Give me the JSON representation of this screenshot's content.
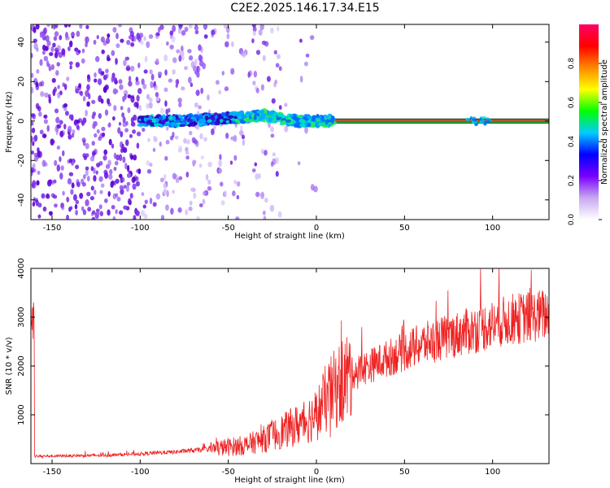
{
  "title": "C2E2.2025.146.17.34.E15",
  "colors": {
    "signal": "#ee2222",
    "line": "#00aa44",
    "noise": "#6a0dd6",
    "axis": "#000000"
  },
  "chart_data": [
    {
      "type": "heatmap",
      "title": "C2E2.2025.146.17.34.E15",
      "xlabel": "Height of straight line (km)",
      "ylabel": "Frequency (Hz)",
      "xlim": [
        -162,
        132
      ],
      "ylim": [
        -50,
        49
      ],
      "xticks": [
        -150,
        -100,
        -50,
        0,
        50,
        100
      ],
      "yticks": [
        -40,
        -20,
        0,
        20,
        40
      ],
      "colorbar": {
        "label": "Normalized spectral amplitude",
        "range": [
          0.0,
          1.0
        ],
        "ticks": [
          "0.0",
          "0.2",
          "0.4",
          "0.6",
          "0.8"
        ],
        "stops": [
          "#ffffff",
          "#c8a8f0",
          "#7a00ff",
          "#0000ff",
          "#00ccff",
          "#00ff00",
          "#ffff00",
          "#ff8800",
          "#ff0000",
          "#ff0066"
        ]
      },
      "signal_band": {
        "start_km": -100,
        "end_km": 132,
        "frequency_hz": [
          0,
          0,
          1,
          2,
          3,
          1,
          0,
          0,
          0,
          0,
          0,
          0
        ],
        "band_km": [
          -100,
          -80,
          -60,
          -40,
          -30,
          -20,
          -10,
          0,
          20,
          60,
          100,
          132
        ]
      },
      "grid": false
    },
    {
      "type": "line",
      "xlabel": "Height of straight line (km)",
      "ylabel": "SNR (10 * v/v)",
      "xlim": [
        -162,
        132
      ],
      "ylim": [
        0,
        4000
      ],
      "xticks": [
        -150,
        -100,
        -50,
        0,
        50,
        100
      ],
      "yticks": [
        1000,
        2000,
        3000,
        4000
      ],
      "series": [
        {
          "x": [
            -160,
            -140,
            -120,
            -100,
            -80,
            -60,
            -40,
            -30,
            -20,
            -10,
            -5,
            0,
            5,
            10,
            15,
            20,
            30,
            40,
            50,
            60,
            70,
            80,
            90,
            95,
            100,
            110,
            120,
            130
          ],
          "y": [
            150,
            160,
            170,
            200,
            240,
            300,
            380,
            500,
            650,
            800,
            900,
            1000,
            1300,
            1500,
            1700,
            1850,
            2000,
            2150,
            2300,
            2450,
            2550,
            2650,
            2750,
            2800,
            2850,
            2950,
            3000,
            3050
          ]
        }
      ],
      "grid": false
    }
  ]
}
